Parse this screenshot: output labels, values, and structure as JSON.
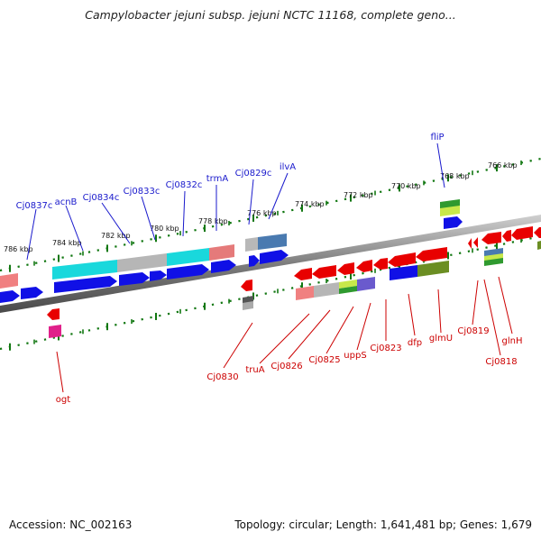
{
  "title": "Campylobacter jejuni subsp. jejuni NCTC 11168, complete geno...",
  "footer": {
    "accession": "Accession: NC_002163",
    "summary": "Topology: circular; Length: 1,641,481 bp; Genes: 1,679"
  },
  "colors": {
    "forward_label": "#1a1acc",
    "reverse_label": "#cc0000",
    "tick": "#117711",
    "backbone": "#8a8a8a"
  },
  "ticks": [
    "786 kbp",
    "784 kbp",
    "782 kbp",
    "780 kbp",
    "778 kbp",
    "776 kbp",
    "774 kbp",
    "772 kbp",
    "770 kbp",
    "768 kbp",
    "766 kbp"
  ],
  "forward_genes": [
    "Cj0837c",
    "acnB",
    "Cj0834c",
    "Cj0833c",
    "Cj0832c",
    "trmA",
    "Cj0829c",
    "ilvA",
    "fliP"
  ],
  "reverse_genes": [
    "ogt",
    "Cj0830",
    "truA",
    "Cj0826",
    "Cj0825",
    "uppS",
    "Cj0823",
    "dfp",
    "glmU",
    "Cj0819",
    "Cj0818",
    "glnH"
  ]
}
